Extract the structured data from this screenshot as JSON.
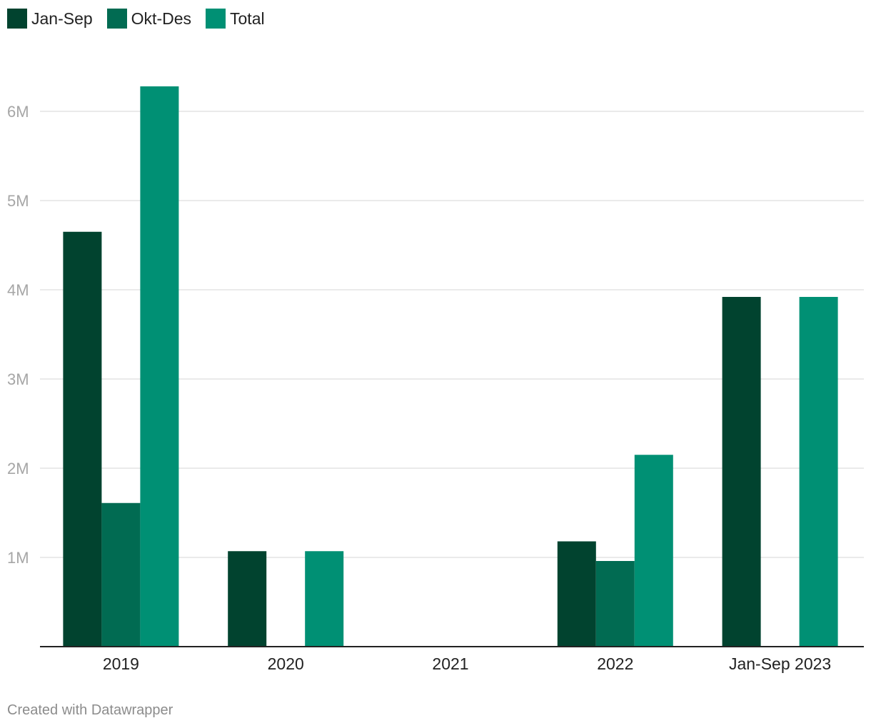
{
  "chart_data": {
    "type": "bar",
    "categories": [
      "2019",
      "2020",
      "2021",
      "2022",
      "Jan-Sep 2023"
    ],
    "series": [
      {
        "name": "Jan-Sep",
        "color": "#01432f",
        "values": [
          4650000,
          1070000,
          0,
          1180000,
          3920000
        ]
      },
      {
        "name": "Okt-Des",
        "color": "#016b52",
        "values": [
          1610000,
          0,
          0,
          960000,
          0
        ]
      },
      {
        "name": "Total",
        "color": "#009074",
        "values": [
          6280000,
          1070000,
          0,
          2150000,
          3920000
        ]
      }
    ],
    "yticks": [
      1000000,
      2000000,
      3000000,
      4000000,
      5000000,
      6000000
    ],
    "ytick_labels": [
      "1M",
      "2M",
      "3M",
      "4M",
      "5M",
      "6M"
    ],
    "ylim": [
      0,
      6300000
    ],
    "grid": true,
    "legend": "top-left"
  },
  "footer": {
    "credit": "Created with Datawrapper"
  }
}
